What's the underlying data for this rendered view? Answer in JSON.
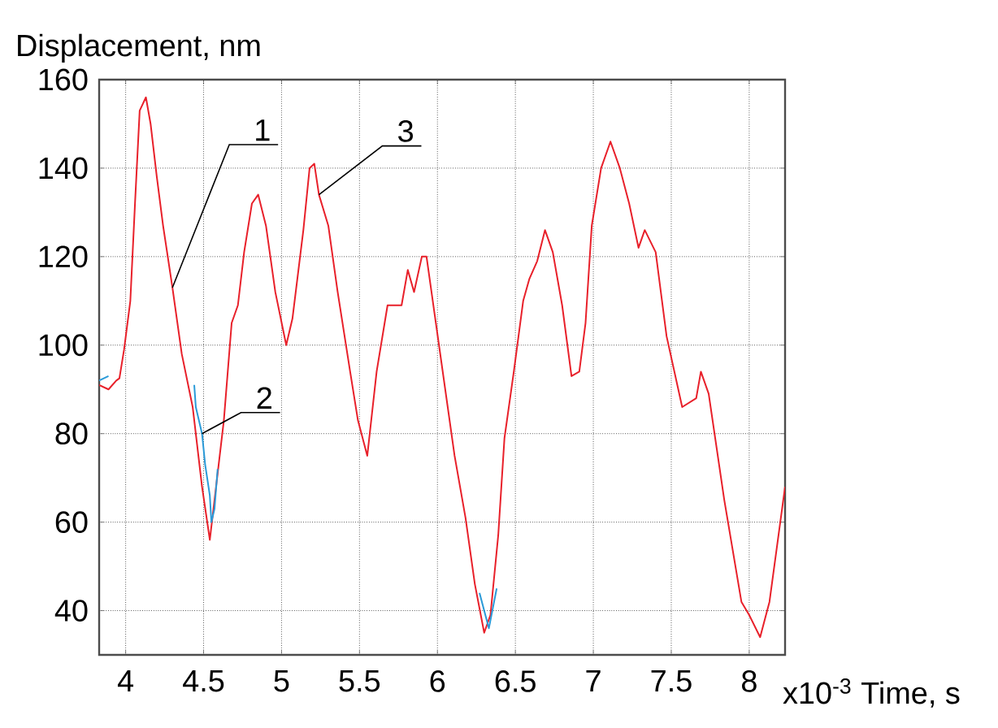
{
  "chart_data": {
    "type": "line",
    "xlabel": "x10$^{-3}$ Time, s",
    "ylabel": "Displacement, nm",
    "xlim": [
      3.83,
      8.23
    ],
    "ylim": [
      30,
      160
    ],
    "xticks": [
      4,
      4.5,
      5,
      5.5,
      6,
      6.5,
      7,
      7.5,
      8
    ],
    "yticks": [
      40,
      60,
      80,
      100,
      120,
      140,
      160
    ],
    "grid": true,
    "line_style": "solid",
    "series": [
      {
        "color": "#e8202a",
        "x": [
          3.83,
          3.89,
          3.94,
          3.96,
          3.99,
          4.03,
          4.06,
          4.09,
          4.13,
          4.16,
          4.2,
          4.24,
          4.3,
          4.36,
          4.43,
          4.49,
          4.54,
          4.58,
          4.63,
          4.68,
          4.72,
          4.76,
          4.81,
          4.85,
          4.9,
          4.96,
          5.03,
          5.07,
          5.14,
          5.18,
          5.21,
          5.24,
          5.3,
          5.36,
          5.44,
          5.49,
          5.55,
          5.61,
          5.68,
          5.73,
          5.77,
          5.81,
          5.85,
          5.9,
          5.93,
          5.99,
          6.05,
          6.11,
          6.18,
          6.24,
          6.3,
          6.34,
          6.39,
          6.43,
          6.49,
          6.55,
          6.59,
          6.64,
          6.69,
          6.74,
          6.8,
          6.86,
          6.91,
          6.95,
          6.99,
          7.05,
          7.11,
          7.17,
          7.23,
          7.29,
          7.33,
          7.4,
          7.47,
          7.57,
          7.66,
          7.69,
          7.74,
          7.84,
          7.95,
          8.0,
          8.07,
          8.13,
          8.23
        ],
        "values": [
          91,
          90,
          92,
          92.5,
          99,
          110,
          132,
          153,
          156,
          150,
          138,
          127,
          113,
          98,
          86,
          68,
          56,
          68,
          83,
          105,
          109,
          121,
          132,
          134,
          127,
          112,
          100,
          106,
          126,
          140,
          141,
          134,
          127,
          112,
          94,
          83,
          75,
          94,
          109,
          109,
          109,
          117,
          112,
          120,
          120,
          105,
          90,
          75,
          61,
          46,
          35,
          39,
          57,
          79,
          94,
          110,
          115,
          119,
          126,
          121,
          109,
          93,
          94,
          105,
          127,
          140,
          146,
          140,
          132,
          122,
          126,
          121,
          102,
          86,
          88,
          94,
          89,
          65,
          42,
          39,
          34,
          42,
          68
        ]
      },
      {
        "color": "#2a9ad8",
        "x": [
          3.83,
          3.89,
          3.95,
          4.44,
          4.45,
          4.49,
          4.51,
          4.54,
          4.55,
          4.57,
          4.59,
          4.62,
          6.27,
          6.33,
          6.38
        ],
        "values": [
          92,
          93,
          null,
          91,
          86,
          80,
          73,
          66,
          60,
          63,
          72,
          null,
          44,
          36,
          45
        ]
      }
    ],
    "annotations": [
      {
        "text": "1",
        "x": 4.3,
        "y": 113
      },
      {
        "text": "2",
        "x": 4.49,
        "y": 80
      },
      {
        "text": "3",
        "x": 5.24,
        "y": 134
      }
    ]
  }
}
